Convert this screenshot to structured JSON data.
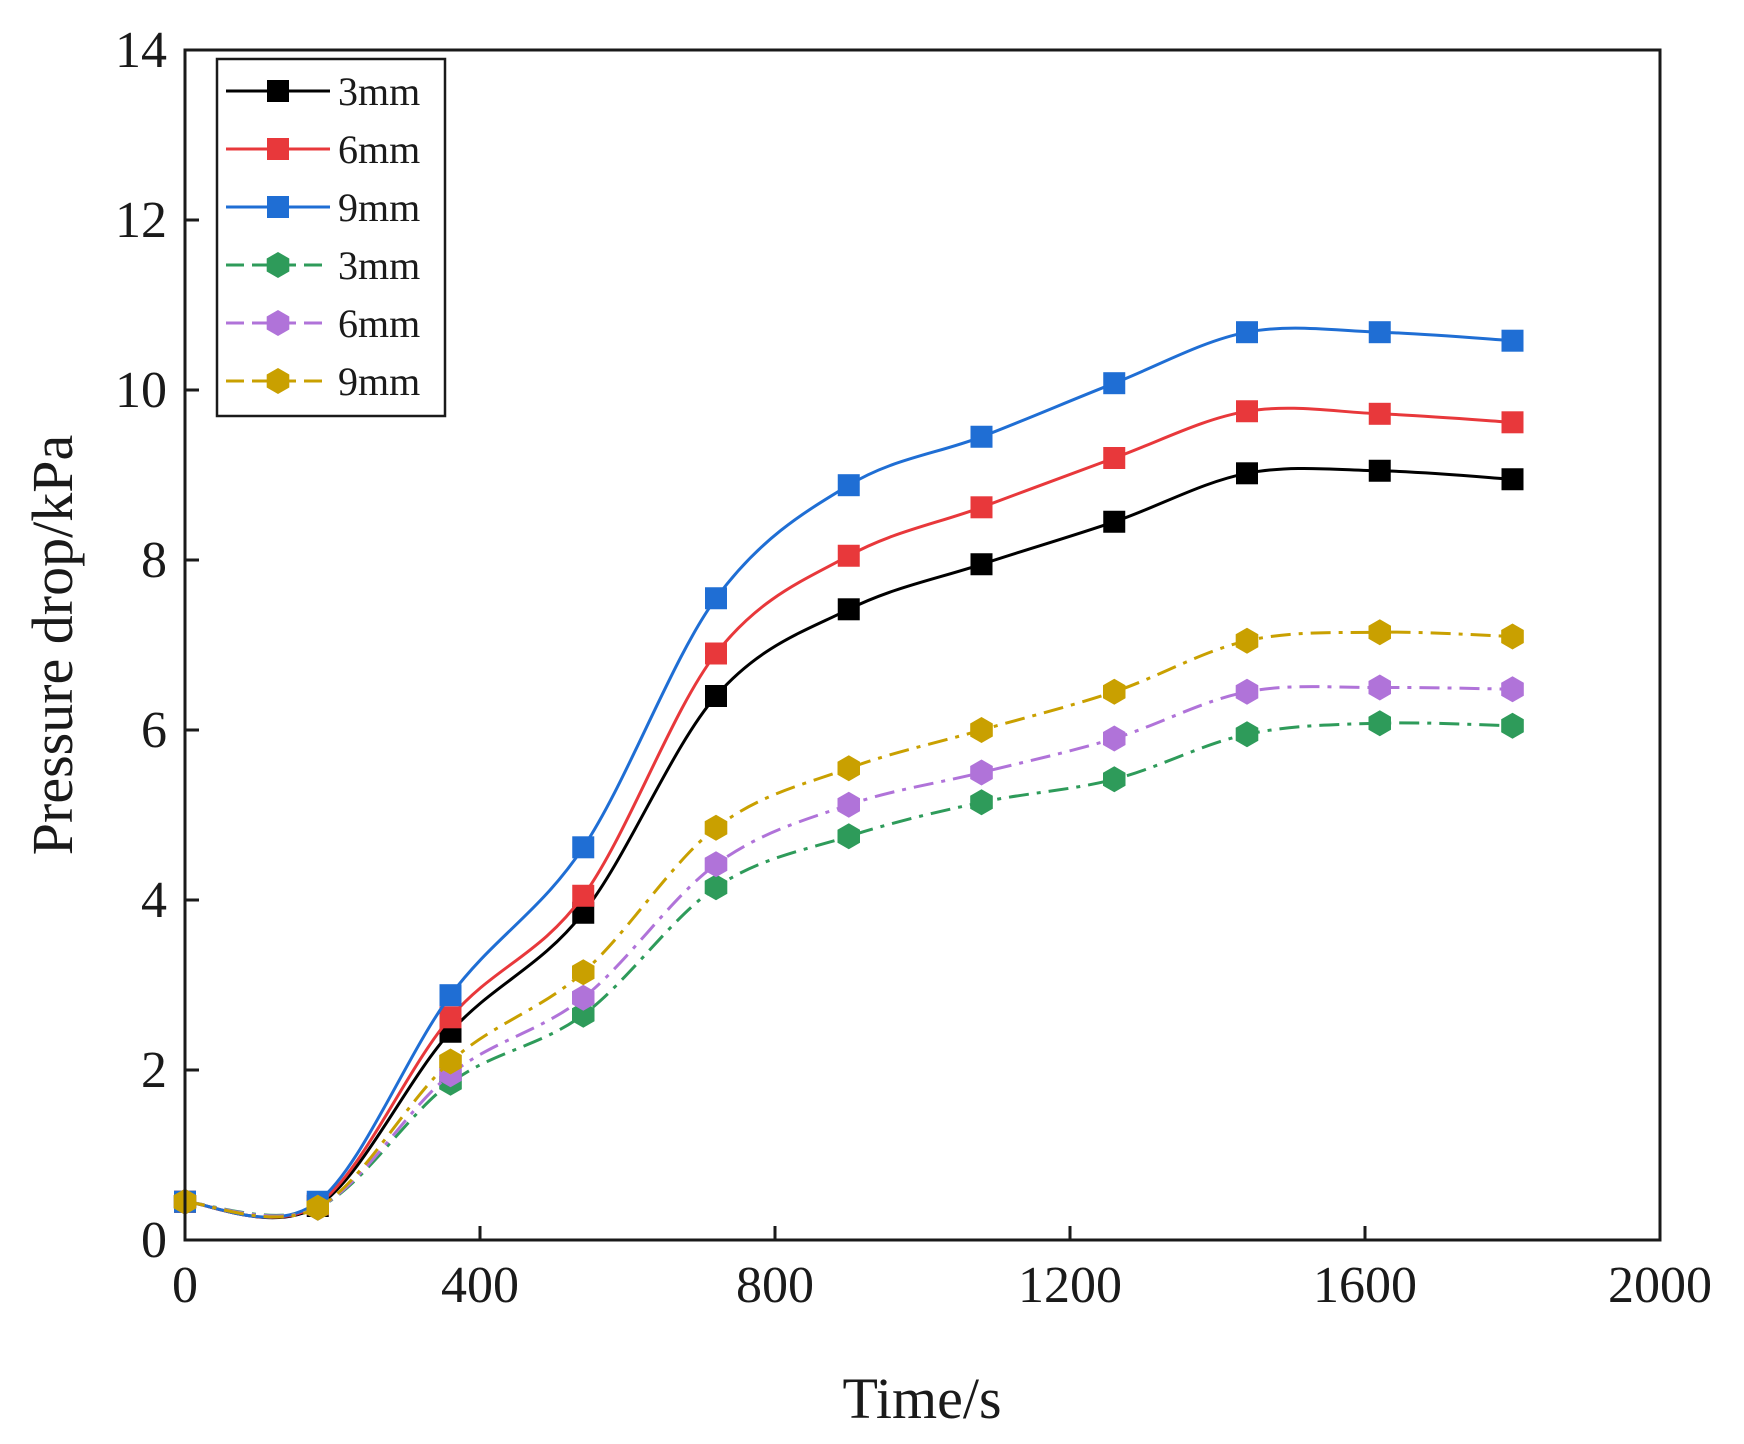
{
  "chart_data": {
    "type": "line",
    "xlabel": "Time/s",
    "ylabel": "Pressure drop/kPa",
    "xlim": [
      0,
      2000
    ],
    "ylim": [
      0,
      14
    ],
    "xticks": [
      "0",
      "400",
      "800",
      "1200",
      "1600",
      "2000"
    ],
    "yticks": [
      "0",
      "2",
      "4",
      "6",
      "8",
      "10",
      "12",
      "14"
    ],
    "grid": false,
    "legend_position": "top-left",
    "x": [
      0,
      180,
      360,
      540,
      720,
      900,
      1080,
      1260,
      1440,
      1620,
      1800
    ],
    "series": [
      {
        "name": "3mm",
        "color": "#000000",
        "marker": "square",
        "dash": "solid",
        "values": [
          0.45,
          0.4,
          2.45,
          3.85,
          6.4,
          7.42,
          7.95,
          8.45,
          9.02,
          9.05,
          8.95
        ]
      },
      {
        "name": "6mm",
        "color": "#e8383b",
        "marker": "square",
        "dash": "solid",
        "values": [
          0.45,
          0.42,
          2.62,
          4.05,
          6.9,
          8.05,
          8.62,
          9.2,
          9.75,
          9.72,
          9.62
        ]
      },
      {
        "name": "9mm",
        "color": "#1f6ed4",
        "marker": "square",
        "dash": "solid",
        "values": [
          0.45,
          0.45,
          2.88,
          4.62,
          7.55,
          8.88,
          9.45,
          10.08,
          10.68,
          10.68,
          10.58
        ]
      },
      {
        "name": "3mm",
        "color": "#2e9b5a",
        "marker": "hexagon",
        "dash": "dashdot",
        "values": [
          0.45,
          0.38,
          1.85,
          2.65,
          4.15,
          4.75,
          5.15,
          5.42,
          5.95,
          6.08,
          6.05
        ]
      },
      {
        "name": "6mm",
        "color": "#b073d9",
        "marker": "hexagon",
        "dash": "dashdot",
        "values": [
          0.45,
          0.38,
          1.95,
          2.85,
          4.42,
          5.12,
          5.5,
          5.9,
          6.45,
          6.5,
          6.48
        ]
      },
      {
        "name": "9mm",
        "color": "#c9a000",
        "marker": "hexagon",
        "dash": "dashdot",
        "values": [
          0.45,
          0.38,
          2.1,
          3.15,
          4.85,
          5.55,
          6.0,
          6.45,
          7.05,
          7.15,
          7.1
        ]
      }
    ]
  }
}
